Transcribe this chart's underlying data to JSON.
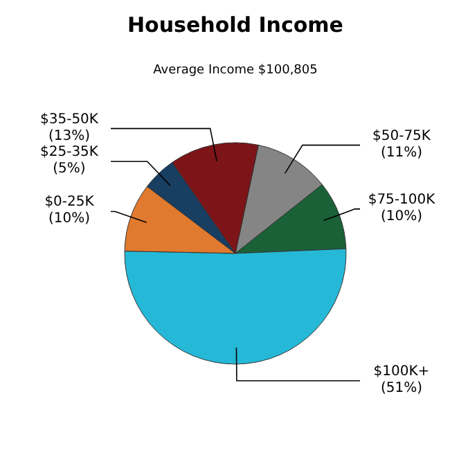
{
  "chart_data": {
    "type": "pie",
    "title": "Household Income",
    "subtitle": "Average Income  $100,805",
    "categories": [
      "$50-75K",
      "$75-100K",
      "$100K+",
      "$0-25K",
      "$25-35K",
      "$35-50K"
    ],
    "values": [
      11,
      10,
      51,
      10,
      5,
      13
    ],
    "value_labels": [
      "(11%)",
      "(10%)",
      "(51%)",
      "(10%)",
      "(5%)",
      "(13%)"
    ],
    "colors": [
      "#858585",
      "#1b6138",
      "#25b9d7",
      "#e07a2e",
      "#183e62",
      "#7c1418"
    ],
    "legend": false
  }
}
